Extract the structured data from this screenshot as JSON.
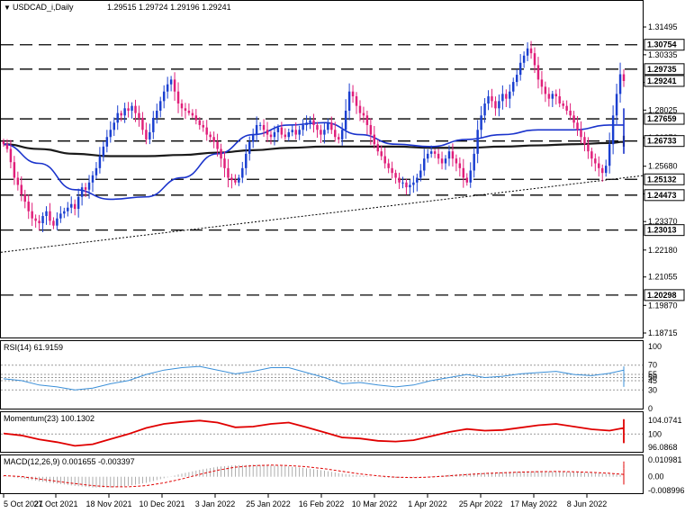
{
  "chart_data": [
    {
      "type": "candlestick",
      "title": "USDCAD_i,Daily",
      "ohlc_text": "1.29515 1.29724 1.29196 1.29241",
      "x_tick_labels": [
        "5 Oct 2021",
        "27 Oct 2021",
        "18 Nov 2021",
        "10 Dec 2021",
        "3 Jan 2022",
        "25 Jan 2022",
        "16 Feb 2022",
        "10 Mar 2022",
        "1 Apr 2022",
        "25 Apr 2022",
        "17 May 2022",
        "8 Jun 2022"
      ],
      "y_tick_labels": [
        "1.31495",
        "1.30335",
        "1.29180",
        "1.28025",
        "1.26870",
        "1.25680",
        "1.24525",
        "1.23370",
        "1.22180",
        "1.21055",
        "1.19870",
        "1.18715"
      ],
      "ylim": [
        1.18715,
        1.31495
      ],
      "horizontal_levels": [
        1.30754,
        1.29735,
        1.27659,
        1.26733,
        1.25132,
        1.24473,
        1.23013,
        1.20298
      ],
      "horizontal_level_labels": [
        "1.30754",
        "1.29735",
        "1.27659",
        "1.26733",
        "1.25132",
        "1.24473",
        "1.23013",
        "1.20298"
      ],
      "current_price": 1.29241,
      "current_price_label": "1.29241",
      "trendline": {
        "from": [
          0,
          1.221
        ],
        "to": [
          180,
          1.253
        ]
      },
      "closes": [
        1.266,
        1.264,
        1.2585,
        1.252,
        1.249,
        1.245,
        1.242,
        1.238,
        1.235,
        1.234,
        1.233,
        1.236,
        1.238,
        1.234,
        1.232,
        1.235,
        1.237,
        1.238,
        1.2395,
        1.241,
        1.239,
        1.244,
        1.248,
        1.247,
        1.25,
        1.253,
        1.256,
        1.261,
        1.265,
        1.269,
        1.272,
        1.275,
        1.279,
        1.278,
        1.281,
        1.28,
        1.282,
        1.279,
        1.277,
        1.272,
        1.268,
        1.271,
        1.277,
        1.28,
        1.284,
        1.288,
        1.291,
        1.293,
        1.288,
        1.283,
        1.281,
        1.28,
        1.279,
        1.278,
        1.276,
        1.274,
        1.273,
        1.27,
        1.269,
        1.267,
        1.264,
        1.26,
        1.256,
        1.252,
        1.251,
        1.25,
        1.252,
        1.256,
        1.262,
        1.267,
        1.27,
        1.274,
        1.274,
        1.272,
        1.27,
        1.269,
        1.271,
        1.273,
        1.27,
        1.269,
        1.271,
        1.272,
        1.27,
        1.272,
        1.274,
        1.275,
        1.276,
        1.274,
        1.272,
        1.27,
        1.272,
        1.275,
        1.272,
        1.269,
        1.268,
        1.272,
        1.28,
        1.288,
        1.286,
        1.282,
        1.279,
        1.278,
        1.274,
        1.27,
        1.266,
        1.263,
        1.261,
        1.258,
        1.256,
        1.254,
        1.252,
        1.25,
        1.25,
        1.248,
        1.249,
        1.25,
        1.252,
        1.255,
        1.26,
        1.262,
        1.263,
        1.262,
        1.26,
        1.258,
        1.26,
        1.263,
        1.26,
        1.258,
        1.256,
        1.252,
        1.25,
        1.255,
        1.262,
        1.272,
        1.278,
        1.283,
        1.286,
        1.284,
        1.281,
        1.284,
        1.287,
        1.285,
        1.288,
        1.292,
        1.295,
        1.3,
        1.303,
        1.306,
        1.304,
        1.299,
        1.293,
        1.29,
        1.287,
        1.285,
        1.287,
        1.286,
        1.283,
        1.282,
        1.28,
        1.278,
        1.275,
        1.272,
        1.269,
        1.266,
        1.263,
        1.26,
        1.258,
        1.256,
        1.254,
        1.257,
        1.266,
        1.278,
        1.287,
        1.2952,
        1.2924
      ],
      "ma_fast": {
        "color": "#1a33cc",
        "values_every_10": [
          1.266,
          1.258,
          1.247,
          1.243,
          1.244,
          1.252,
          1.262,
          1.27,
          1.274,
          1.275,
          1.27,
          1.266,
          1.265,
          1.268,
          1.27,
          1.272,
          1.272,
          1.274,
          1.274,
          1.27,
          1.265,
          1.264,
          1.268,
          1.274,
          1.278,
          1.279,
          1.277,
          1.27,
          1.262,
          1.262,
          1.264,
          1.269,
          1.276,
          1.281,
          1.279,
          1.274,
          1.27,
          1.274
        ]
      },
      "ma_slow": {
        "color": "#1a1a1a",
        "values_every_10": [
          1.266,
          1.264,
          1.262,
          1.261,
          1.261,
          1.2615,
          1.2625,
          1.2635,
          1.2645,
          1.265,
          1.265,
          1.265,
          1.2645,
          1.2645,
          1.265,
          1.2655,
          1.266,
          1.2665,
          1.267,
          1.2668,
          1.266,
          1.2652,
          1.265,
          1.2652,
          1.266,
          1.267,
          1.268,
          1.2688,
          1.269,
          1.269,
          1.269,
          1.269,
          1.2692,
          1.2695,
          1.2695,
          1.2692,
          1.269,
          1.269
        ]
      }
    },
    {
      "type": "line",
      "name": "RSI(14) 61.9159",
      "ylim": [
        0,
        100
      ],
      "y_tick_labels": [
        "100",
        "70",
        "55",
        "50",
        "45",
        "30",
        "0"
      ],
      "color": "#3a8fd8",
      "values_every_5": [
        48,
        45,
        38,
        35,
        30,
        33,
        40,
        45,
        55,
        62,
        66,
        68,
        62,
        56,
        60,
        66,
        66,
        58,
        50,
        40,
        42,
        38,
        35,
        38,
        45,
        50,
        55,
        50,
        52,
        56,
        58,
        60,
        55,
        53,
        57,
        62,
        60,
        52,
        46,
        42,
        40,
        42,
        46,
        40,
        38,
        42,
        44,
        46,
        50,
        55,
        50,
        54,
        60,
        66,
        68,
        64,
        58,
        52,
        48,
        42,
        40,
        38,
        35,
        40,
        52,
        62,
        64
      ]
    },
    {
      "type": "line",
      "name": "Momentum(23) 100.1302",
      "ylim": [
        95.0,
        105.0
      ],
      "y_tick_labels": [
        "104.0741",
        "100",
        "96.0868"
      ],
      "color": "#e00000",
      "values_every_5": [
        100.2,
        99.6,
        98.4,
        97.6,
        96.5,
        97.0,
        98.5,
        100.0,
        101.8,
        103.0,
        103.6,
        104.0,
        103.4,
        102.0,
        102.2,
        103.0,
        103.4,
        102.0,
        100.5,
        99.0,
        98.7,
        98.0,
        97.8,
        98.2,
        99.4,
        100.6,
        101.5,
        101.0,
        101.2,
        101.9,
        102.6,
        103.0,
        102.2,
        101.4,
        101.0,
        101.8,
        102.2,
        101.6,
        100.5,
        99.6,
        99.0,
        99.1,
        99.6,
        98.8,
        98.3,
        98.8,
        99.4,
        100.0,
        100.8,
        101.6,
        102.4,
        103.2,
        104.2,
        104.4,
        103.5,
        102.6,
        102.0,
        101.2,
        100.5,
        99.4,
        98.6,
        97.7,
        97.3,
        98.0,
        98.8,
        99.6,
        100.1
      ]
    },
    {
      "type": "bar+line",
      "name": "MACD(12,26,9) 0.001655 -0.003397",
      "ylim": [
        -0.008996,
        0.010981
      ],
      "y_tick_labels": [
        "0.010981",
        "0.00",
        "-0.008996"
      ],
      "histogram_color": "#9a9a9a",
      "signal_color": "#e00000",
      "histogram_every_5": [
        0.0005,
        -0.001,
        -0.003,
        -0.0045,
        -0.006,
        -0.007,
        -0.007,
        -0.006,
        -0.004,
        -0.001,
        0.002,
        0.0045,
        0.0065,
        0.0075,
        0.0078,
        0.0074,
        0.0068,
        0.0055,
        0.004,
        0.002,
        0.0008,
        -0.0002,
        -0.0008,
        -0.0005,
        0.0003,
        0.0012,
        0.002,
        0.0026,
        0.003,
        0.0034,
        0.0036,
        0.0034,
        0.003,
        0.0025,
        0.0018,
        0.001,
        0.0002,
        -0.0008,
        -0.002,
        -0.0034,
        -0.0045,
        -0.0052,
        -0.0054,
        -0.005,
        -0.0042,
        -0.003,
        -0.0015,
        0.0,
        0.0018,
        0.0038,
        0.0058,
        0.0074,
        0.0088,
        0.0098,
        0.0102,
        0.01,
        0.0092,
        0.0078,
        0.006,
        0.004,
        0.0018,
        -0.0005,
        -0.0022,
        -0.0034,
        -0.004,
        -0.0033,
        0.0017
      ],
      "signal_every_5": [
        0.0007,
        0.0001,
        -0.0015,
        -0.003,
        -0.0045,
        -0.0058,
        -0.0066,
        -0.0066,
        -0.0058,
        -0.004,
        -0.0015,
        0.0015,
        0.0042,
        0.0062,
        0.0072,
        0.0076,
        0.0073,
        0.0065,
        0.0052,
        0.0035,
        0.0018,
        0.0006,
        -0.0003,
        -0.0006,
        -0.0002,
        0.0006,
        0.0014,
        0.0021,
        0.0026,
        0.003,
        0.0033,
        0.0034,
        0.0032,
        0.0028,
        0.0022,
        0.0015,
        0.0007,
        -0.0003,
        -0.0015,
        -0.0028,
        -0.004,
        -0.0049,
        -0.0053,
        -0.0052,
        -0.0046,
        -0.0036,
        -0.0022,
        -0.0007,
        0.001,
        0.0028,
        0.0047,
        0.0064,
        0.0079,
        0.0091,
        0.0098,
        0.0099,
        0.0094,
        0.0083,
        0.0068,
        0.0049,
        0.0028,
        0.0007,
        -0.0012,
        -0.0026,
        -0.0035,
        -0.0037,
        -0.0034
      ]
    }
  ]
}
